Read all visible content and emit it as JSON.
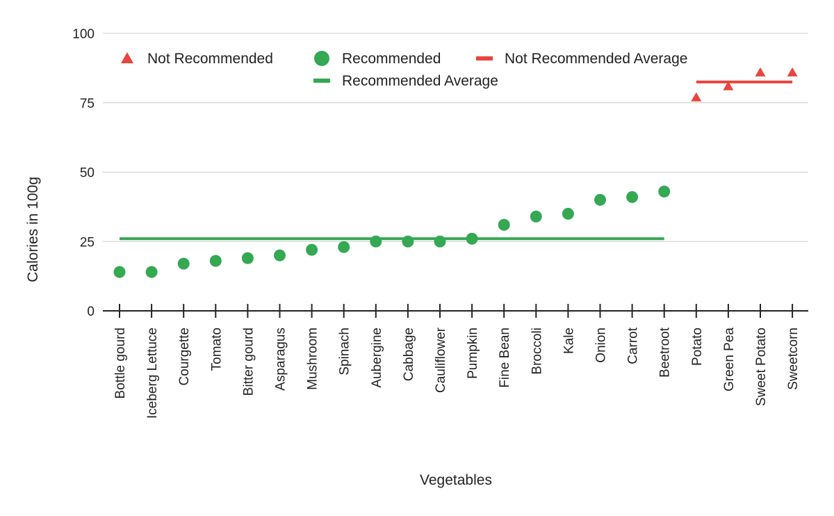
{
  "chart_data": {
    "type": "scatter",
    "title": "",
    "xlabel": "Vegetables",
    "ylabel": "Calories in 100g",
    "ylim": [
      0,
      100
    ],
    "yticks": [
      0,
      25,
      50,
      75,
      100
    ],
    "grid": true,
    "legend_position": "top",
    "categories": [
      "Bottle gourd",
      "Iceberg Lettuce",
      "Courgette",
      "Tomato",
      "Bitter gourd",
      "Asparagus",
      "Mushroom",
      "Spinach",
      "Aubergine",
      "Cabbage",
      "Cauliflower",
      "Pumpkin",
      "Fine Bean",
      "Broccoli",
      "Kale",
      "Onion",
      "Carrot",
      "Beetroot",
      "Potato",
      "Green Pea",
      "Sweet Potato",
      "Sweetcorn"
    ],
    "series": [
      {
        "name": "Not Recommended",
        "marker": "triangle",
        "color": "#E8453C",
        "points": [
          {
            "category": "Potato",
            "value": 77
          },
          {
            "category": "Green Pea",
            "value": 81
          },
          {
            "category": "Sweet Potato",
            "value": 86
          },
          {
            "category": "Sweetcorn",
            "value": 86
          }
        ]
      },
      {
        "name": "Recommended",
        "marker": "circle",
        "color": "#34A853",
        "points": [
          {
            "category": "Bottle gourd",
            "value": 14
          },
          {
            "category": "Iceberg Lettuce",
            "value": 14
          },
          {
            "category": "Courgette",
            "value": 17
          },
          {
            "category": "Tomato",
            "value": 18
          },
          {
            "category": "Bitter gourd",
            "value": 19
          },
          {
            "category": "Asparagus",
            "value": 20
          },
          {
            "category": "Mushroom",
            "value": 22
          },
          {
            "category": "Spinach",
            "value": 23
          },
          {
            "category": "Aubergine",
            "value": 25
          },
          {
            "category": "Cabbage",
            "value": 25
          },
          {
            "category": "Cauliflower",
            "value": 25
          },
          {
            "category": "Pumpkin",
            "value": 26
          },
          {
            "category": "Fine Bean",
            "value": 31
          },
          {
            "category": "Broccoli",
            "value": 34
          },
          {
            "category": "Kale",
            "value": 35
          },
          {
            "category": "Onion",
            "value": 40
          },
          {
            "category": "Carrot",
            "value": 41
          },
          {
            "category": "Beetroot",
            "value": 43
          }
        ]
      },
      {
        "name": "Not Recommended Average",
        "marker": "line",
        "color": "#E8453C",
        "value": 82.5,
        "from": "Potato",
        "to": "Sweetcorn"
      },
      {
        "name": "Recommended Average",
        "marker": "line",
        "color": "#34A853",
        "value": 26,
        "from": "Bottle gourd",
        "to": "Beetroot"
      }
    ]
  }
}
